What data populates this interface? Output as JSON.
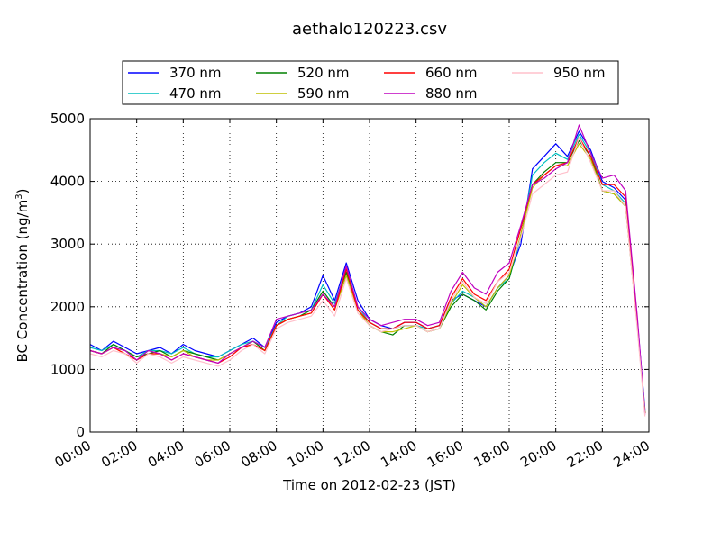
{
  "chart_data": {
    "type": "line",
    "title": "aethalo120223.csv",
    "xlabel": "Time on 2012-02-23 (JST)",
    "ylabel": "BC Concentration (ng/m",
    "ylabel_sup": "3",
    "ylabel_close": ")",
    "xlim": [
      "00:00",
      "24:00"
    ],
    "ylim": [
      0,
      5000
    ],
    "yticks": [
      0,
      1000,
      2000,
      3000,
      4000,
      5000
    ],
    "xticks": [
      "00:00",
      "02:00",
      "04:00",
      "06:00",
      "08:00",
      "10:00",
      "12:00",
      "14:00",
      "16:00",
      "18:00",
      "20:00",
      "22:00",
      "24:00"
    ],
    "grid": true,
    "legend_position": "top, above plot",
    "x": [
      "00:00",
      "00:30",
      "01:00",
      "01:30",
      "02:00",
      "02:30",
      "03:00",
      "03:30",
      "04:00",
      "04:30",
      "05:00",
      "05:30",
      "06:00",
      "06:30",
      "07:00",
      "07:30",
      "08:00",
      "08:30",
      "09:00",
      "09:30",
      "10:00",
      "10:30",
      "11:00",
      "11:30",
      "12:00",
      "12:30",
      "13:00",
      "13:30",
      "14:00",
      "14:30",
      "15:00",
      "15:30",
      "16:00",
      "16:30",
      "17:00",
      "17:30",
      "18:00",
      "18:30",
      "19:00",
      "19:30",
      "20:00",
      "20:30",
      "21:00",
      "21:30",
      "22:00",
      "22:30",
      "23:00",
      "23:30",
      "23:50"
    ],
    "series": [
      {
        "name": "370 nm",
        "color": "#0000ff",
        "values": [
          1400,
          1300,
          1450,
          1350,
          1250,
          1300,
          1350,
          1250,
          1400,
          1300,
          1250,
          1200,
          1300,
          1400,
          1500,
          1350,
          1750,
          1850,
          1900,
          2000,
          2500,
          2100,
          2700,
          2100,
          1800,
          1700,
          1650,
          1750,
          1750,
          1650,
          1700,
          2100,
          2200,
          2100,
          2000,
          2300,
          2500,
          3000,
          4200,
          4400,
          4600,
          4400,
          4800,
          4500,
          4000,
          3900,
          3700,
          1800,
          350
        ]
      },
      {
        "name": "470 nm",
        "color": "#00bfbf",
        "values": [
          1350,
          1300,
          1400,
          1300,
          1200,
          1300,
          1300,
          1250,
          1350,
          1250,
          1200,
          1200,
          1300,
          1400,
          1450,
          1350,
          1700,
          1850,
          1900,
          1950,
          2350,
          2050,
          2600,
          2000,
          1750,
          1650,
          1650,
          1700,
          1700,
          1650,
          1700,
          2050,
          2250,
          2150,
          2000,
          2300,
          2450,
          3100,
          4100,
          4300,
          4450,
          4350,
          4750,
          4450,
          3950,
          3850,
          3650,
          1750,
          320
        ]
      },
      {
        "name": "520 nm",
        "color": "#008000",
        "values": [
          1300,
          1250,
          1400,
          1300,
          1200,
          1250,
          1300,
          1200,
          1300,
          1250,
          1200,
          1150,
          1250,
          1350,
          1450,
          1300,
          1700,
          1800,
          1850,
          1950,
          2250,
          2000,
          2550,
          1950,
          1700,
          1600,
          1550,
          1700,
          1700,
          1600,
          1650,
          2000,
          2200,
          2100,
          1950,
          2250,
          2450,
          3150,
          3950,
          4150,
          4300,
          4300,
          4650,
          4400,
          3850,
          3800,
          3600,
          1700,
          300
        ]
      },
      {
        "name": "590 nm",
        "color": "#bfbf00",
        "values": [
          1300,
          1250,
          1350,
          1250,
          1150,
          1250,
          1250,
          1200,
          1300,
          1200,
          1150,
          1150,
          1250,
          1350,
          1400,
          1300,
          1700,
          1800,
          1850,
          1900,
          2200,
          1950,
          2500,
          1950,
          1700,
          1600,
          1600,
          1650,
          1700,
          1600,
          1650,
          2050,
          2350,
          2150,
          2000,
          2300,
          2500,
          3150,
          3900,
          4100,
          4250,
          4250,
          4600,
          4350,
          3850,
          3800,
          3600,
          1700,
          300
        ]
      },
      {
        "name": "660 nm",
        "color": "#ff0000",
        "values": [
          1300,
          1250,
          1350,
          1250,
          1150,
          1250,
          1250,
          1150,
          1250,
          1200,
          1150,
          1100,
          1200,
          1350,
          1400,
          1300,
          1700,
          1800,
          1850,
          1900,
          2200,
          1950,
          2600,
          1950,
          1750,
          1650,
          1650,
          1750,
          1750,
          1650,
          1700,
          2150,
          2450,
          2200,
          2100,
          2400,
          2600,
          3250,
          3950,
          4100,
          4250,
          4300,
          4700,
          4400,
          3950,
          3950,
          3750,
          1750,
          300
        ]
      },
      {
        "name": "880 nm",
        "color": "#bf00bf",
        "values": [
          1300,
          1250,
          1350,
          1300,
          1150,
          1300,
          1250,
          1150,
          1250,
          1200,
          1150,
          1100,
          1250,
          1350,
          1450,
          1350,
          1800,
          1850,
          1900,
          1950,
          2200,
          2000,
          2650,
          2000,
          1800,
          1700,
          1750,
          1800,
          1800,
          1700,
          1750,
          2250,
          2550,
          2300,
          2200,
          2550,
          2700,
          3300,
          3950,
          4050,
          4200,
          4300,
          4900,
          4450,
          4050,
          4100,
          3850,
          1850,
          280
        ]
      },
      {
        "name": "950 nm",
        "color": "#ffc0cb",
        "values": [
          1250,
          1200,
          1300,
          1250,
          1100,
          1250,
          1200,
          1100,
          1200,
          1150,
          1100,
          1050,
          1150,
          1300,
          1400,
          1250,
          1650,
          1750,
          1800,
          1850,
          2100,
          1850,
          2450,
          1900,
          1700,
          1600,
          1650,
          1700,
          1700,
          1600,
          1650,
          2100,
          2400,
          2150,
          2050,
          2400,
          2550,
          3100,
          3800,
          3950,
          4100,
          4150,
          4700,
          4300,
          3850,
          3850,
          3600,
          1650,
          250
        ]
      }
    ]
  }
}
